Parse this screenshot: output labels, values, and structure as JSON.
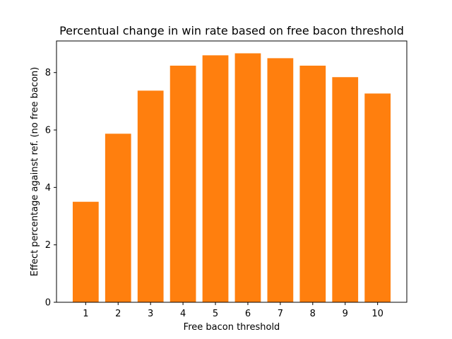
{
  "chart_data": {
    "type": "bar",
    "title": "Percentual change in win rate based on free bacon threshold",
    "xlabel": "Free bacon threshold",
    "ylabel": "Effect percentage against ref. (no free bacon)",
    "categories": [
      "1",
      "2",
      "3",
      "4",
      "5",
      "6",
      "7",
      "8",
      "9",
      "10"
    ],
    "values": [
      3.5,
      5.87,
      7.37,
      8.24,
      8.6,
      8.67,
      8.5,
      8.24,
      7.84,
      7.27
    ],
    "ylim": [
      0,
      9.1
    ],
    "yticks": [
      0,
      2,
      4,
      6,
      8
    ],
    "bar_color": "#ff7f0e",
    "grid": false,
    "legend": "none"
  }
}
